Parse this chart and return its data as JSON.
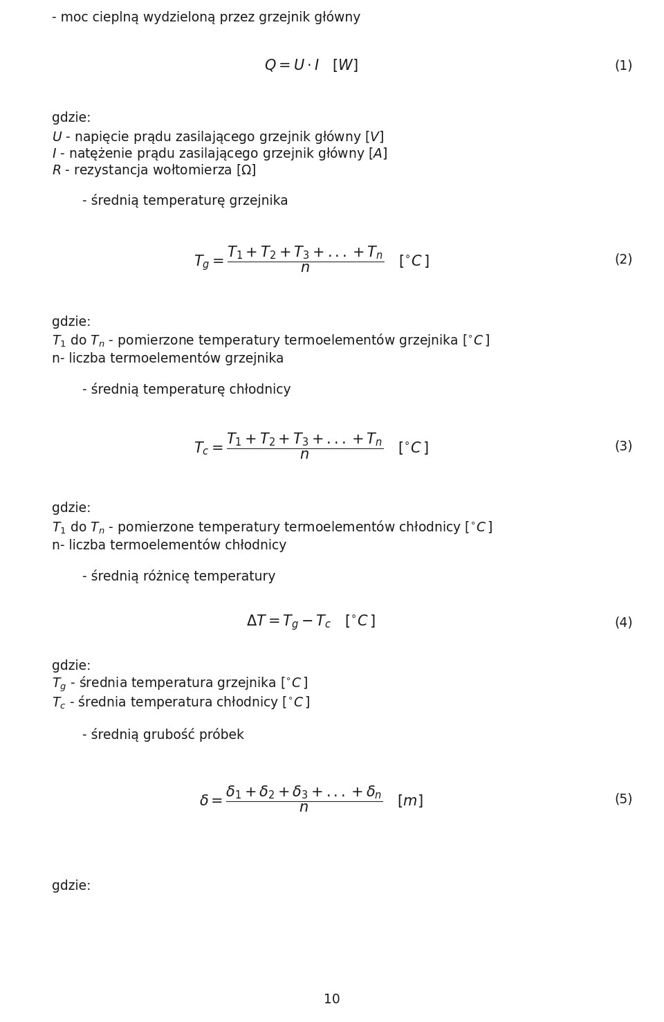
{
  "bg_color": "#ffffff",
  "text_color": "#1a1a1a",
  "page_width": 9.6,
  "page_height": 14.77,
  "fs": 13.5,
  "fs_eq": 15,
  "line1": "- moc cieplną wydzieloną przez grzejnik główny",
  "eq1": "$Q = U \\cdot I \\quad [W]$",
  "eq1_label": "(1)",
  "gdzie1": "gdzie:",
  "line_U": "$U$ - napięcie prądu zasilającego grzejnik główny $[V]$",
  "line_I": "$I$ - natężenie prądu zasilającego grzejnik główny $[A]$",
  "line_R": "$R$ - rezystancja wołtomierza $[\\Omega]$",
  "line_sr_g": "    - średnią temperaturę grzejnika",
  "eq2": "$T_g = \\dfrac{T_1 + T_2 + T_3 + ... + T_n}{n} \\quad [{}^{\\circ}C\\,]$",
  "eq2_label": "(2)",
  "gdzie2": "gdzie:",
  "line_T1Tn_g": "$T_1$ do $T_n$ - pomierzone temperatury termoelementów grzejnika $[{}^{\\circ}C\\,]$",
  "line_n_g": "n- liczba termoelementów grzejnika",
  "line_sr_c": "    - średnią temperaturę chłodnicy",
  "eq3": "$T_c = \\dfrac{T_1 + T_2 + T_3 + ... + T_n}{n} \\quad [{}^{\\circ}C\\,]$",
  "eq3_label": "(3)",
  "gdzie3": "gdzie:",
  "line_T1Tn_c": "$T_1$ do $T_n$ - pomierzone temperatury termoelementów chłodnicy $[{}^{\\circ}C\\,]$",
  "line_n_c": "n- liczba termoelementów chłodnicy",
  "line_sr_r": "    - średnią różnicę temperatury",
  "eq4": "$\\Delta T = T_g - T_c \\quad [{}^{\\circ}C\\,]$",
  "eq4_label": "(4)",
  "gdzie4": "gdzie:",
  "line_Tg": "$T_g$ - średnia temperatura grzejnika $[{}^{\\circ}C\\,]$",
  "line_Tc": "$T_c$ - średnia temperatura chłodnicy $[{}^{\\circ}C\\,]$",
  "line_sr_grub": "    - średnią grubość próbek",
  "eq5": "$\\delta = \\dfrac{\\delta_1 + \\delta_2 + \\delta_3 + ...+ \\delta_n}{n} \\quad [m]$",
  "eq5_label": "(5)",
  "gdzie5": "gdzie:",
  "page_num": "10"
}
